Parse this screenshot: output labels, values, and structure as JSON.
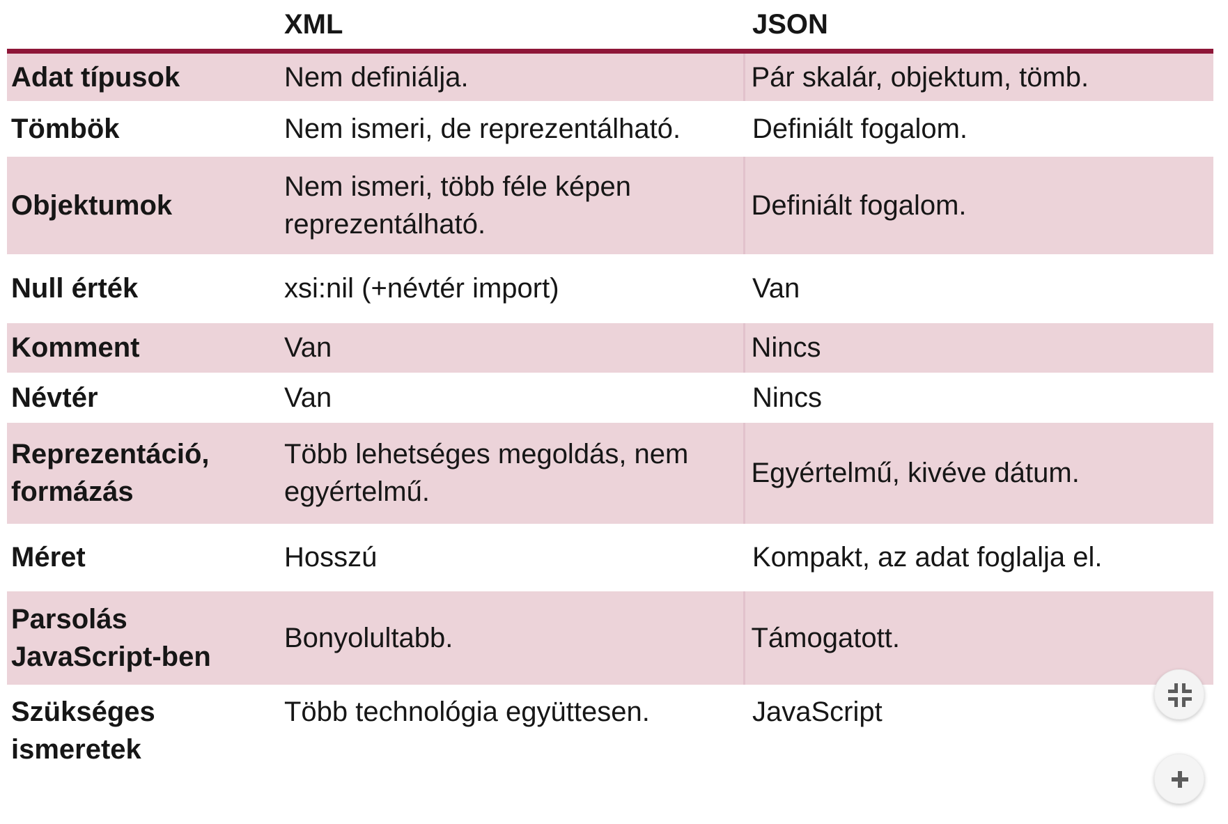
{
  "table": {
    "columns": [
      "",
      "XML",
      "JSON"
    ],
    "rows": [
      {
        "label": "Adat típusok",
        "xml": "Nem definiálja.",
        "json": "Pár skalár, objektum, tömb."
      },
      {
        "label": "Tömbök",
        "xml": "Nem ismeri, de reprezentálható.",
        "json": "Definiált fogalom."
      },
      {
        "label": "Objektumok",
        "xml": "Nem ismeri, több féle képen reprezentálható.",
        "json": "Definiált fogalom."
      },
      {
        "label": "Null érték",
        "xml": "xsi:nil (+névtér import)",
        "json": "Van"
      },
      {
        "label": "Komment",
        "xml": "Van",
        "json": "Nincs"
      },
      {
        "label": "Névtér",
        "xml": "Van",
        "json": "Nincs"
      },
      {
        "label": "Reprezentáció, formázás",
        "xml": "Több lehetséges megoldás, nem egyértelmű.",
        "json": "Egyértelmű, kivéve dátum."
      },
      {
        "label": "Méret",
        "xml": "Hosszú",
        "json": "Kompakt, az adat foglalja el."
      },
      {
        "label": "Parsolás JavaScript-ben",
        "xml": "Bonyolultabb.",
        "json": "Támogatott."
      },
      {
        "label": "Szükséges ismeretek",
        "xml": "Több technológia együttesen.",
        "json": "JavaScript"
      }
    ]
  },
  "colors": {
    "row_shade": "#ECD3D9",
    "header_rule": "#8E1638",
    "column_divider": "#E2C2CC",
    "text": "#161616",
    "button_bg": "#F4F4F4",
    "button_icon": "#5C5C5C"
  },
  "floating_buttons": [
    {
      "name": "exit-fullscreen",
      "icon": "compress-icon"
    },
    {
      "name": "zoom-in",
      "icon": "plus-icon"
    }
  ]
}
